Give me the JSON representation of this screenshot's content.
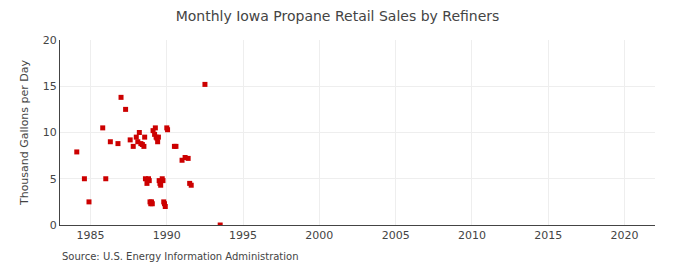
{
  "chart_data": {
    "type": "scatter",
    "title": "Monthly Iowa Propane Retail Sales by Refiners",
    "ylabel": "Thousand Gallons per Day",
    "annotations": [
      "Source: U.S. Energy Information Administration"
    ],
    "color": "#cc0000",
    "marker": "square",
    "grid": true,
    "xlim": [
      1983,
      2022
    ],
    "ylim": [
      0,
      20
    ],
    "xticks": [
      1985,
      1990,
      1995,
      2000,
      2005,
      2010,
      2015,
      2020
    ],
    "yticks": [
      0,
      5,
      10,
      15,
      20
    ],
    "x": [
      1984.1,
      1984.6,
      1984.9,
      1985.8,
      1986.0,
      1986.3,
      1986.8,
      1987.0,
      1987.3,
      1987.6,
      1987.8,
      1988.0,
      1988.1,
      1988.2,
      1988.3,
      1988.4,
      1988.5,
      1988.55,
      1988.6,
      1988.7,
      1988.8,
      1988.85,
      1988.9,
      1988.95,
      1989.0,
      1989.05,
      1989.1,
      1989.2,
      1989.25,
      1989.3,
      1989.35,
      1989.4,
      1989.45,
      1989.5,
      1989.55,
      1989.6,
      1989.7,
      1989.75,
      1989.8,
      1989.85,
      1989.9,
      1990.0,
      1990.05,
      1990.5,
      1990.6,
      1991.0,
      1991.2,
      1991.4,
      1991.5,
      1991.6,
      1992.5,
      1993.5
    ],
    "values": [
      7.9,
      5.0,
      2.5,
      10.5,
      5.0,
      9.0,
      8.8,
      13.8,
      12.5,
      9.2,
      8.5,
      9.5,
      9.0,
      10.0,
      8.8,
      8.7,
      8.5,
      9.5,
      5.0,
      4.5,
      5.0,
      4.8,
      2.5,
      2.3,
      2.5,
      2.3,
      10.2,
      9.8,
      10.5,
      9.5,
      9.4,
      9.0,
      9.5,
      4.8,
      4.5,
      4.3,
      5.0,
      4.8,
      2.5,
      2.3,
      2.0,
      10.5,
      10.3,
      8.5,
      8.5,
      7.0,
      7.3,
      7.2,
      4.5,
      4.3,
      15.2,
      0.0
    ]
  }
}
